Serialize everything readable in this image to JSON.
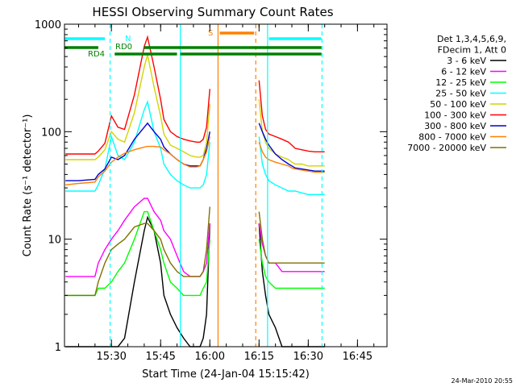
{
  "chart_data": {
    "type": "line",
    "title": "HESSI Observing Summary Count Rates",
    "xlabel": "Start Time (24-Jan-04 15:15:42)",
    "ylabel": "Count Rate (s⁻¹ detector⁻¹)",
    "y_scale": "log",
    "ylim": [
      1,
      1000
    ],
    "xlim": [
      "15:15:42",
      "16:54:00"
    ],
    "x_ticks": [
      "15:30",
      "15:45",
      "16:00",
      "16:15",
      "16:30",
      "16:45"
    ],
    "y_tick_labels": [
      "1",
      "10",
      "100",
      "1000"
    ],
    "footer_date": "24-Mar-2010 20:55",
    "legend": {
      "header": [
        "Det 1,3,4,5,6,9,",
        "FDecim 1, Att 0"
      ],
      "placement": "right",
      "entries": [
        {
          "label": "3 - 6 keV",
          "color": "#000000"
        },
        {
          "label": "6 - 12 keV",
          "color": "#ff00ff"
        },
        {
          "label": "12 - 25 keV",
          "color": "#00ff00"
        },
        {
          "label": "25 - 50 keV",
          "color": "#00ffff"
        },
        {
          "label": "50 - 100 keV",
          "color": "#d4d400"
        },
        {
          "label": "100 - 300 keV",
          "color": "#ff0000"
        },
        {
          "label": "300 - 800 keV",
          "color": "#0000d0"
        },
        {
          "label": "800 - 7000 keV",
          "color": "#ff8000"
        },
        {
          "label": "7000 - 20000 keV",
          "color": "#807000"
        }
      ]
    },
    "flag_labels": [
      {
        "text": "N",
        "color": "#00ffff"
      },
      {
        "text": "RD0",
        "color": "#008000"
      },
      {
        "text": "RD4",
        "color": "#008000"
      },
      {
        "text": "S",
        "color": "#ff8000"
      }
    ],
    "x_minutes": [
      16,
      20,
      25,
      26,
      28,
      30,
      32,
      34,
      37,
      40,
      41,
      43,
      45,
      46,
      48,
      50,
      52,
      54,
      56,
      57,
      58,
      59,
      60,
      61,
      62,
      73,
      74,
      75,
      76,
      77,
      78,
      80,
      82,
      84,
      85,
      86,
      88,
      90,
      92,
      95
    ],
    "series": [
      {
        "name": "3 - 6 keV",
        "color": "#000000",
        "values": [
          1,
          1,
          1,
          1,
          1,
          1,
          1,
          1.2,
          4,
          12,
          16,
          12,
          6,
          3,
          2,
          1.5,
          1.2,
          1,
          1,
          1,
          1.2,
          2,
          14,
          null,
          null,
          null,
          null,
          14,
          5,
          3,
          2,
          1.5,
          1,
          1,
          1,
          1,
          1,
          1,
          1,
          1
        ]
      },
      {
        "name": "6 - 12 keV",
        "color": "#ff00ff",
        "values": [
          4.5,
          4.5,
          4.5,
          6,
          8,
          10,
          12,
          15,
          20,
          24,
          24,
          18,
          15,
          12,
          10,
          7,
          5,
          4.5,
          4.5,
          4.5,
          5,
          6,
          14,
          null,
          null,
          null,
          null,
          14,
          9,
          7,
          6,
          6,
          5,
          5,
          5,
          5,
          5,
          5,
          5,
          5
        ]
      },
      {
        "name": "12 - 25 keV",
        "color": "#00ff00",
        "values": [
          3,
          3,
          3,
          3.5,
          3.5,
          4,
          5,
          6,
          10,
          18,
          18,
          12,
          8,
          6,
          4,
          3.5,
          3,
          3,
          3,
          3,
          3.5,
          4,
          10,
          null,
          null,
          null,
          null,
          10,
          6,
          4.5,
          4,
          3.5,
          3.5,
          3.5,
          3.5,
          3.5,
          3.5,
          3.5,
          3.5,
          3.5
        ]
      },
      {
        "name": "25 - 50 keV",
        "color": "#00ffff",
        "values": [
          28,
          28,
          28,
          32,
          45,
          90,
          60,
          55,
          80,
          160,
          190,
          100,
          70,
          50,
          40,
          35,
          32,
          30,
          30,
          30,
          32,
          40,
          80,
          null,
          null,
          null,
          null,
          90,
          50,
          40,
          35,
          32,
          30,
          28,
          28,
          28,
          27,
          26,
          26,
          26
        ]
      },
      {
        "name": "50 - 100 keV",
        "color": "#d4d400",
        "values": [
          55,
          55,
          55,
          58,
          68,
          100,
          85,
          80,
          150,
          400,
          520,
          260,
          140,
          95,
          75,
          70,
          65,
          60,
          58,
          58,
          60,
          80,
          180,
          null,
          null,
          null,
          null,
          200,
          100,
          80,
          70,
          62,
          58,
          55,
          52,
          50,
          50,
          48,
          48,
          48
        ]
      },
      {
        "name": "100 - 300 keV",
        "color": "#ff0000",
        "values": [
          62,
          62,
          62,
          66,
          78,
          140,
          110,
          105,
          220,
          620,
          760,
          400,
          200,
          130,
          100,
          90,
          85,
          82,
          80,
          80,
          85,
          110,
          250,
          null,
          null,
          null,
          null,
          300,
          140,
          105,
          95,
          90,
          85,
          80,
          75,
          70,
          68,
          66,
          65,
          65
        ]
      },
      {
        "name": "300 - 800 keV",
        "color": "#0000d0",
        "values": [
          35,
          35,
          36,
          40,
          45,
          58,
          55,
          60,
          85,
          110,
          120,
          100,
          85,
          72,
          62,
          55,
          50,
          48,
          48,
          48,
          55,
          70,
          100,
          null,
          null,
          null,
          null,
          120,
          100,
          85,
          75,
          62,
          55,
          50,
          48,
          46,
          45,
          44,
          43,
          43
        ]
      },
      {
        "name": "800 - 7000 keV",
        "color": "#ff8000",
        "values": [
          32,
          33,
          34,
          38,
          43,
          52,
          58,
          63,
          68,
          72,
          73,
          73,
          72,
          68,
          62,
          55,
          50,
          47,
          47,
          48,
          55,
          65,
          90,
          null,
          null,
          null,
          null,
          80,
          65,
          58,
          55,
          52,
          50,
          48,
          46,
          45,
          44,
          43,
          42,
          42
        ]
      },
      {
        "name": "7000 - 20000 keV",
        "color": "#807000",
        "values": [
          3,
          3,
          3,
          4,
          6,
          8,
          9,
          10,
          13,
          14,
          14,
          12,
          10,
          8,
          6,
          5,
          4.5,
          4.5,
          4.5,
          4.5,
          5,
          8,
          20,
          null,
          null,
          null,
          null,
          18,
          10,
          7,
          6,
          6,
          6,
          6,
          6,
          6,
          6,
          6,
          6,
          6
        ]
      }
    ],
    "flags": [
      {
        "name": "N",
        "color": "#00ffff",
        "segments": [
          [
            15.7,
            28
          ],
          [
            78,
            94
          ]
        ]
      },
      {
        "name": "RD0",
        "color": "#008000",
        "segments": [
          [
            15.7,
            26
          ],
          [
            40,
            94
          ]
        ]
      },
      {
        "name": "RD4",
        "color": "#008000",
        "segments": [
          [
            31,
            50
          ],
          [
            51,
            63
          ],
          [
            63,
            94
          ]
        ]
      },
      {
        "name": "S",
        "color": "#ff8000",
        "segments": [
          [
            63,
            73.5
          ]
        ]
      }
    ],
    "vlines": [
      {
        "minute": 29.6,
        "color": "#00ffff",
        "style": "dashed"
      },
      {
        "minute": 51,
        "color": "#00ffff",
        "style": "solid"
      },
      {
        "minute": 62.5,
        "color": "#ff8000",
        "style": "solid"
      },
      {
        "minute": 74,
        "color": "#ff8000",
        "style": "dashed"
      },
      {
        "minute": 77.6,
        "color": "#00ffff",
        "style": "solid"
      },
      {
        "minute": 94.2,
        "color": "#00ffff",
        "style": "dashed"
      }
    ]
  }
}
